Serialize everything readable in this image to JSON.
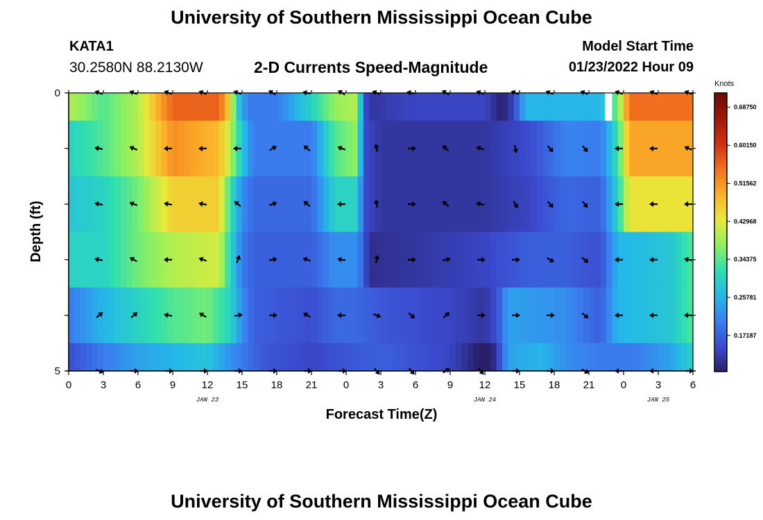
{
  "header": {
    "title": "University of Southern Mississippi Ocean Cube",
    "station": "KATA1",
    "coordinates": "30.2580N  88.2130W",
    "subtitle": "2-D Currents Speed-Magnitude",
    "model_start_label": "Model Start Time",
    "model_start_value": "01/23/2022 Hour 09"
  },
  "footer": {
    "title": "University of Southern Mississippi Ocean Cube"
  },
  "chart_data": {
    "type": "heatmap",
    "title": "2-D Currents Speed-Magnitude",
    "xlabel": "Forecast Time(Z)",
    "ylabel": "Depth (ft)",
    "x_tick_labels": [
      "0",
      "3",
      "6",
      "9",
      "12",
      "15",
      "18",
      "21",
      "0",
      "3",
      "6",
      "9",
      "12",
      "15",
      "18",
      "21",
      "0",
      "3",
      "6"
    ],
    "date_labels": [
      {
        "label": "JAN 23",
        "at_tick": 4
      },
      {
        "label": "JAN 24",
        "at_tick": 12
      },
      {
        "label": "JAN 25",
        "at_tick": 17
      }
    ],
    "y_tick_labels": [
      "0",
      "5"
    ],
    "xlim_hours": [
      0,
      54
    ],
    "ylim_ft": [
      0,
      5
    ],
    "colorbar": {
      "unit": "Knots",
      "labels": [
        "0.68750",
        "0.60150",
        "0.51562",
        "0.42968",
        "0.34375",
        "0.25781",
        "0.17187"
      ],
      "values": [
        0.6875,
        0.6015,
        0.51562,
        0.42968,
        0.34375,
        0.25781,
        0.17187
      ],
      "range": [
        0.09,
        0.72
      ],
      "colors": [
        "#2a1f6a",
        "#3b4bd0",
        "#3a7ff0",
        "#25b8e8",
        "#2fdfb0",
        "#8ef060",
        "#e8ea3a",
        "#fbb02a",
        "#f1701e",
        "#d03010",
        "#a01808",
        "#6a0a08"
      ]
    },
    "depth_rows_ft": [
      0,
      1,
      2,
      3,
      4,
      5
    ],
    "speed_keyframes": [
      [
        [
          0,
          0.4
        ],
        [
          3,
          0.34
        ],
        [
          6,
          0.4
        ],
        [
          9,
          0.56
        ],
        [
          13,
          0.56
        ],
        [
          14,
          0.45
        ],
        [
          14.5,
          0.3
        ],
        [
          15.5,
          0.2
        ],
        [
          18,
          0.2
        ],
        [
          21,
          0.3
        ],
        [
          23,
          0.38
        ],
        [
          25,
          0.4
        ],
        [
          25.5,
          0.16
        ],
        [
          26,
          0.12
        ],
        [
          30,
          0.14
        ],
        [
          36,
          0.14
        ],
        [
          37.5,
          0.09
        ],
        [
          38.5,
          0.14
        ],
        [
          39.5,
          0.26
        ],
        [
          42,
          0.26
        ],
        [
          46,
          0.26
        ],
        [
          47.5,
          0.36
        ],
        [
          48.5,
          0.55
        ],
        [
          54,
          0.55
        ]
      ],
      [
        [
          0,
          0.3
        ],
        [
          3,
          0.34
        ],
        [
          6,
          0.4
        ],
        [
          9,
          0.52
        ],
        [
          13,
          0.48
        ],
        [
          14,
          0.4
        ],
        [
          15,
          0.28
        ],
        [
          16,
          0.2
        ],
        [
          21,
          0.2
        ],
        [
          23,
          0.34
        ],
        [
          25,
          0.38
        ],
        [
          25.5,
          0.15
        ],
        [
          27,
          0.12
        ],
        [
          36,
          0.12
        ],
        [
          40,
          0.15
        ],
        [
          43,
          0.21
        ],
        [
          46,
          0.2
        ],
        [
          47.5,
          0.32
        ],
        [
          48.5,
          0.5
        ],
        [
          54,
          0.5
        ]
      ],
      [
        [
          0,
          0.28
        ],
        [
          3,
          0.3
        ],
        [
          6,
          0.36
        ],
        [
          9,
          0.46
        ],
        [
          13,
          0.46
        ],
        [
          14,
          0.32
        ],
        [
          15,
          0.22
        ],
        [
          16,
          0.18
        ],
        [
          21,
          0.18
        ],
        [
          23,
          0.3
        ],
        [
          25,
          0.3
        ],
        [
          25.5,
          0.15
        ],
        [
          27,
          0.12
        ],
        [
          36,
          0.12
        ],
        [
          40,
          0.14
        ],
        [
          43,
          0.18
        ],
        [
          46,
          0.17
        ],
        [
          47.5,
          0.3
        ],
        [
          48.5,
          0.44
        ],
        [
          54,
          0.44
        ]
      ],
      [
        [
          0,
          0.3
        ],
        [
          3,
          0.3
        ],
        [
          6,
          0.36
        ],
        [
          9,
          0.4
        ],
        [
          13,
          0.42
        ],
        [
          14,
          0.3
        ],
        [
          15,
          0.2
        ],
        [
          16,
          0.17
        ],
        [
          21,
          0.17
        ],
        [
          23,
          0.22
        ],
        [
          25,
          0.22
        ],
        [
          26,
          0.11
        ],
        [
          30,
          0.12
        ],
        [
          36,
          0.14
        ],
        [
          40,
          0.17
        ],
        [
          43,
          0.17
        ],
        [
          46,
          0.15
        ],
        [
          47.5,
          0.26
        ],
        [
          52,
          0.28
        ],
        [
          54,
          0.34
        ]
      ],
      [
        [
          0,
          0.2
        ],
        [
          3,
          0.26
        ],
        [
          6,
          0.3
        ],
        [
          9,
          0.34
        ],
        [
          12,
          0.36
        ],
        [
          14,
          0.3
        ],
        [
          15,
          0.22
        ],
        [
          16,
          0.17
        ],
        [
          21,
          0.15
        ],
        [
          23,
          0.18
        ],
        [
          25,
          0.18
        ],
        [
          27,
          0.16
        ],
        [
          33,
          0.14
        ],
        [
          36,
          0.12
        ],
        [
          37,
          0.15
        ],
        [
          38,
          0.24
        ],
        [
          43,
          0.22
        ],
        [
          46,
          0.17
        ],
        [
          47.5,
          0.26
        ],
        [
          52,
          0.28
        ],
        [
          54,
          0.34
        ]
      ],
      [
        [
          0,
          0.15
        ],
        [
          3,
          0.2
        ],
        [
          6,
          0.24
        ],
        [
          9,
          0.26
        ],
        [
          12,
          0.28
        ],
        [
          14,
          0.22
        ],
        [
          17,
          0.16
        ],
        [
          21,
          0.14
        ],
        [
          24,
          0.16
        ],
        [
          27,
          0.17
        ],
        [
          33,
          0.14
        ],
        [
          35,
          0.1
        ],
        [
          36,
          0.07
        ],
        [
          37,
          0.12
        ],
        [
          38,
          0.24
        ],
        [
          41,
          0.26
        ],
        [
          43,
          0.22
        ],
        [
          46,
          0.2
        ],
        [
          49,
          0.2
        ],
        [
          52,
          0.24
        ],
        [
          54,
          0.3
        ]
      ]
    ],
    "data_gap": {
      "hours": [
        46.4,
        47
      ],
      "depth_ft": [
        0,
        0.5
      ]
    },
    "arrow_hours": [
      3,
      6,
      9,
      12,
      15,
      18,
      21,
      24,
      27,
      30,
      33,
      36,
      39,
      42,
      45,
      48,
      51,
      54
    ],
    "arrow_directions_deg": [
      [
        200,
        200,
        200,
        200,
        200,
        210,
        190,
        210,
        200,
        190,
        210,
        200,
        200,
        200,
        200,
        200,
        200,
        200
      ],
      [
        190,
        200,
        180,
        180,
        180,
        330,
        220,
        200,
        260,
        0,
        220,
        200,
        80,
        50,
        50,
        180,
        180,
        200
      ],
      [
        190,
        200,
        190,
        190,
        220,
        340,
        220,
        180,
        260,
        0,
        220,
        190,
        60,
        50,
        50,
        180,
        180,
        180
      ],
      [
        190,
        210,
        180,
        200,
        290,
        350,
        200,
        190,
        280,
        0,
        350,
        0,
        0,
        30,
        40,
        180,
        180,
        190
      ],
      [
        320,
        320,
        190,
        210,
        350,
        0,
        210,
        180,
        20,
        40,
        320,
        0,
        0,
        0,
        40,
        180,
        180,
        180
      ],
      [
        20,
        0,
        0,
        0,
        0,
        0,
        0,
        0,
        50,
        50,
        330,
        50,
        0,
        0,
        30,
        180,
        180,
        0
      ]
    ]
  }
}
